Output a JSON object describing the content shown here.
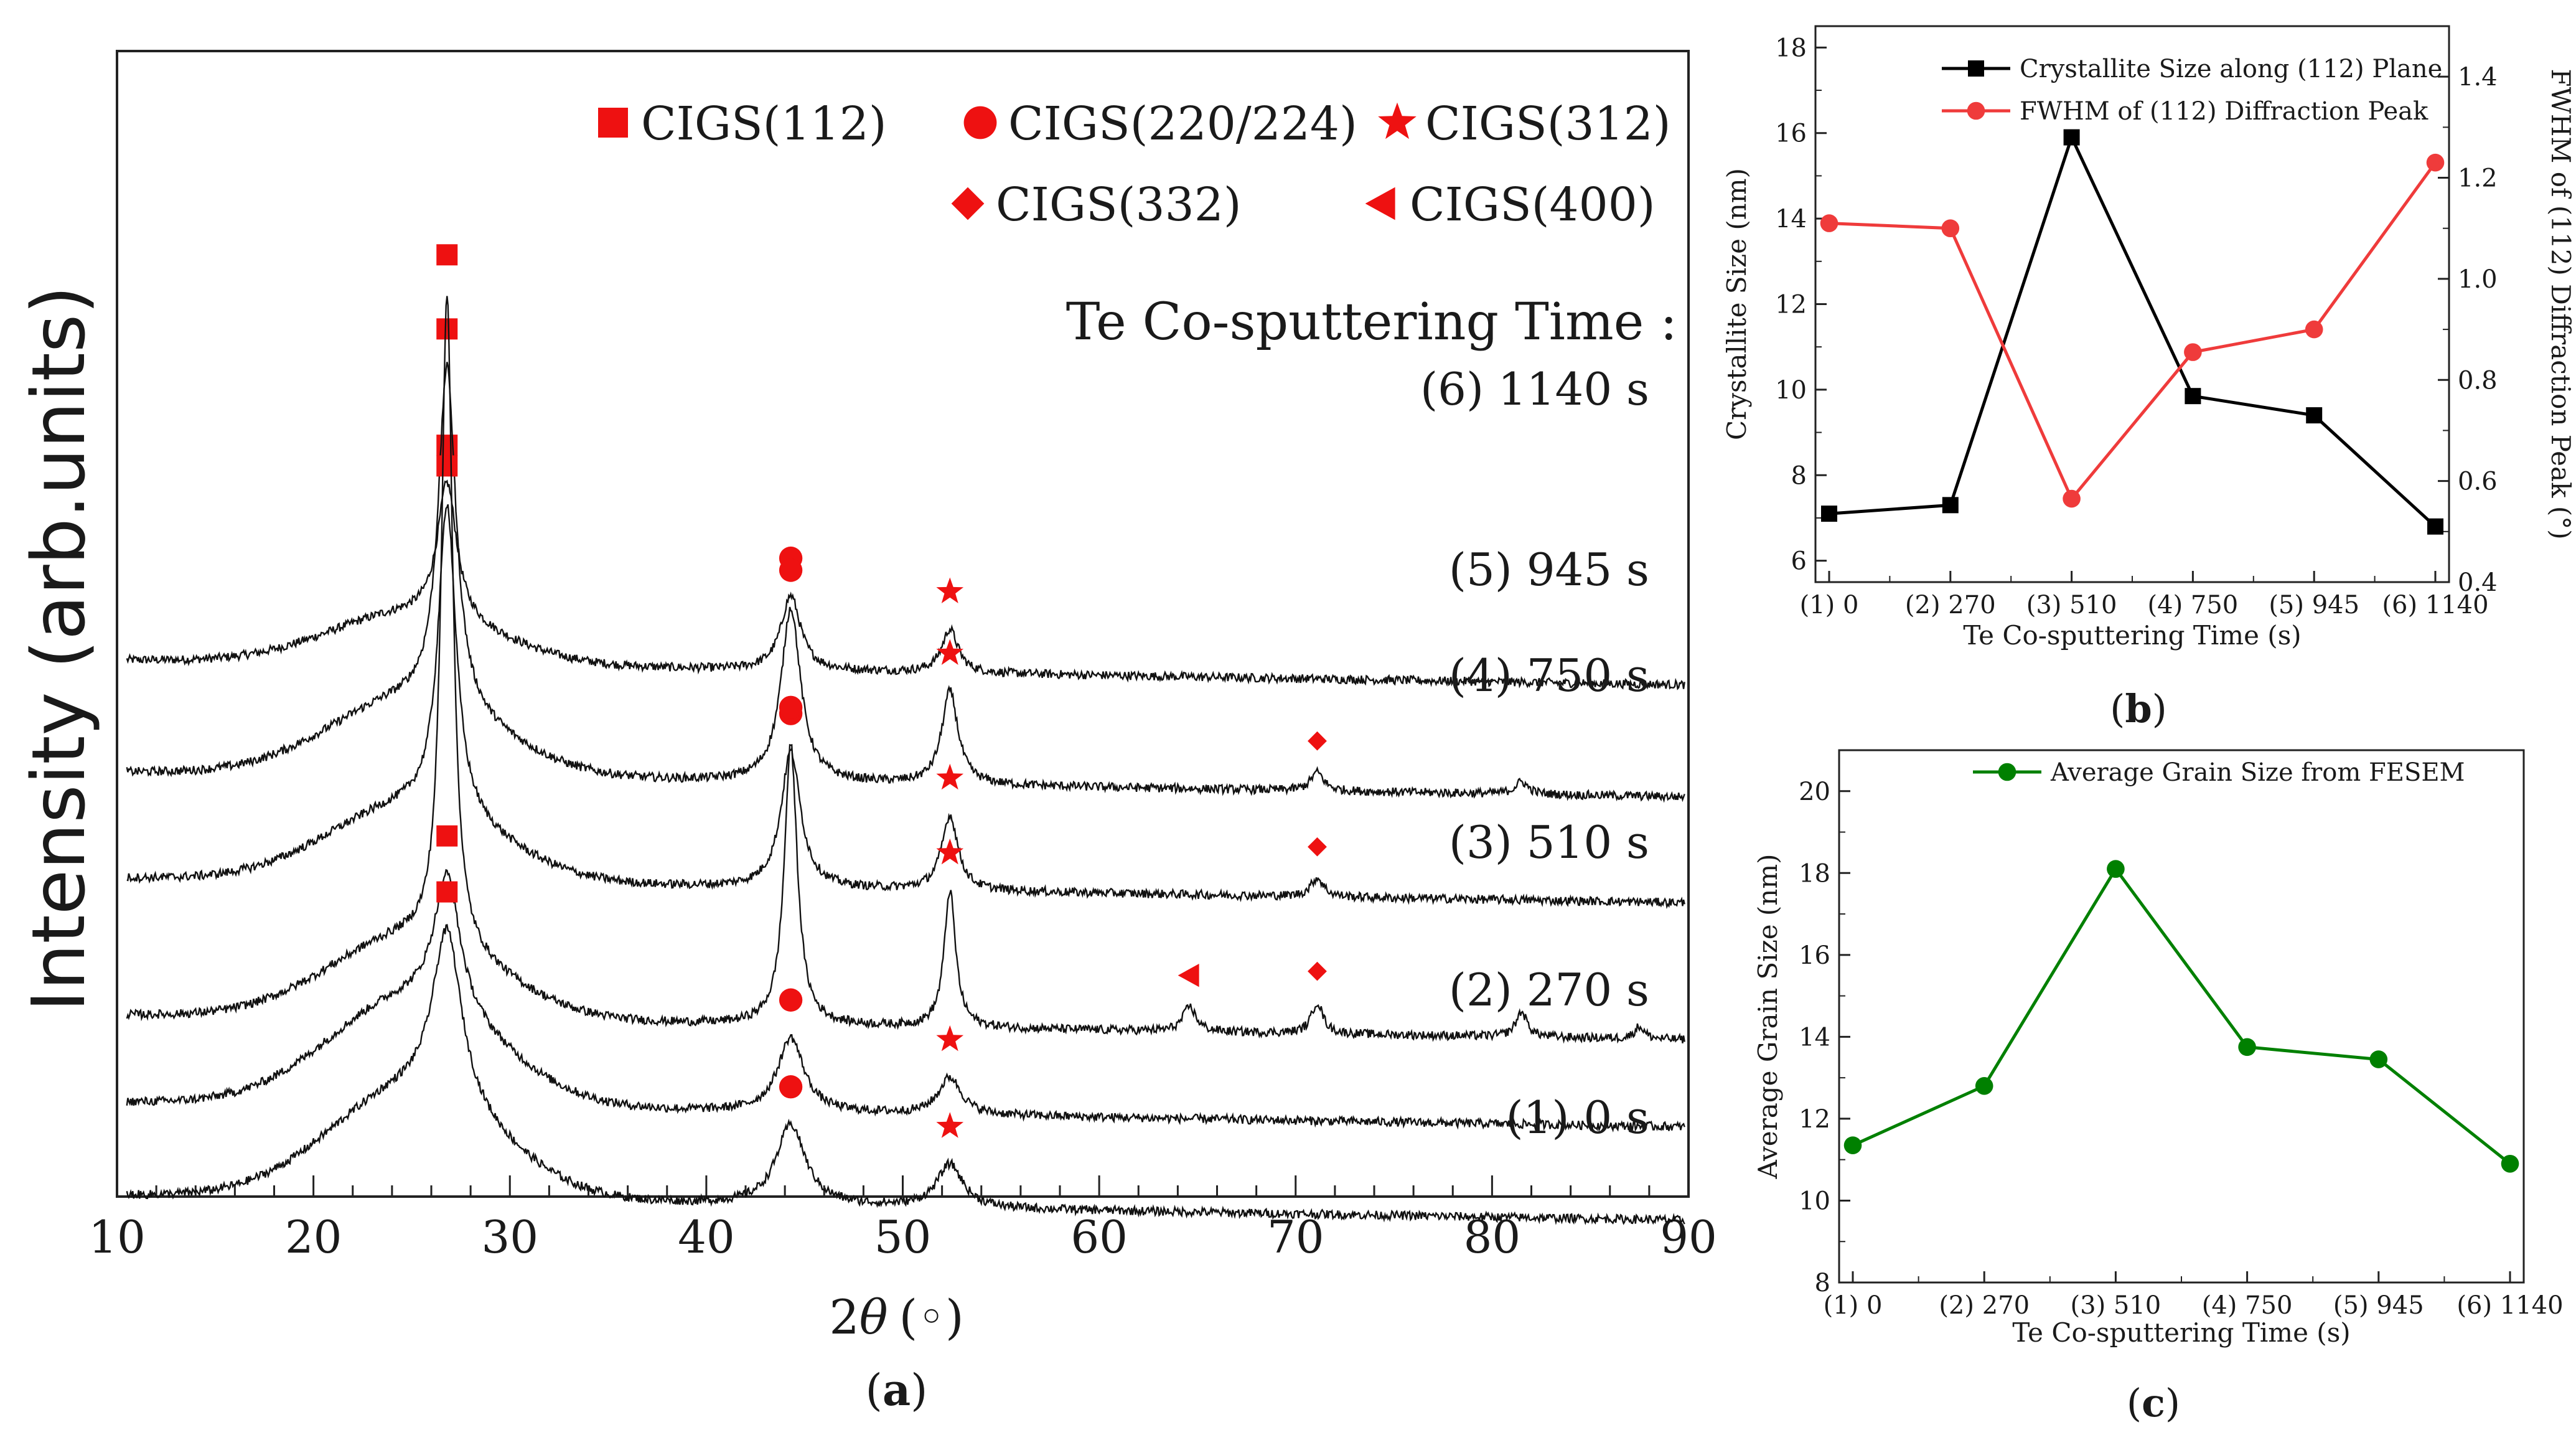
{
  "chart_data": [
    {
      "id": "a",
      "type": "line",
      "panel_label": "a",
      "xlabel": "2θ (◦)",
      "xlabel_main": "2",
      "xlabel_sym": "θ",
      "xlabel_unit": "(◦)",
      "ylabel": "Intensity (arb.units)",
      "xlim": [
        10,
        90
      ],
      "xticks": [
        "10",
        "20",
        "30",
        "40",
        "50",
        "60",
        "70",
        "80",
        "90"
      ],
      "xtick_values": [
        10,
        20,
        30,
        40,
        50,
        60,
        70,
        80,
        90
      ],
      "legend": [
        {
          "label": "CIGS(112)",
          "marker": "square"
        },
        {
          "label": "CIGS(220/224)",
          "marker": "circle"
        },
        {
          "label": "CIGS(312)",
          "marker": "star"
        },
        {
          "label": "CIGS(332)",
          "marker": "diamond"
        },
        {
          "label": "CIGS(400)",
          "marker": "triangle-left"
        }
      ],
      "series_title": "Te Co-sputtering Time :",
      "series": [
        {
          "name": "(6) 1140 s",
          "baseline": 0.8,
          "peaks": [
            [
              26.8,
              0.22,
              0.6
            ],
            [
              44.3,
              0.12,
              0.6
            ],
            [
              52.4,
              0.07,
              0.5
            ]
          ],
          "broad": 0.08,
          "markers": [
            {
              "type": "square",
              "x": 26.8
            },
            {
              "type": "circle",
              "x": 44.3
            },
            {
              "type": "star",
              "x": 52.4
            }
          ]
        },
        {
          "name": "(5) 945 s",
          "baseline": 0.62,
          "peaks": [
            [
              26.8,
              0.55,
              0.55
            ],
            [
              44.3,
              0.28,
              0.6
            ],
            [
              52.4,
              0.15,
              0.5
            ],
            [
              71.1,
              0.03,
              0.4
            ],
            [
              81.5,
              0.02,
              0.4
            ]
          ],
          "broad": 0.12,
          "markers": [
            {
              "type": "square",
              "x": 26.8
            },
            {
              "type": "circle",
              "x": 44.3
            },
            {
              "type": "star",
              "x": 52.4
            },
            {
              "type": "diamond",
              "x": 71.1
            }
          ]
        },
        {
          "name": "(4) 750 s",
          "baseline": 0.45,
          "peaks": [
            [
              26.8,
              0.5,
              0.55
            ],
            [
              44.3,
              0.22,
              0.6
            ],
            [
              52.4,
              0.12,
              0.5
            ],
            [
              71.1,
              0.03,
              0.4
            ]
          ],
          "broad": 0.12,
          "markers": [
            {
              "type": "square",
              "x": 26.8
            },
            {
              "type": "circle",
              "x": 44.3
            },
            {
              "type": "star",
              "x": 52.4
            },
            {
              "type": "diamond",
              "x": 71.1
            }
          ]
        },
        {
          "name": "(3) 510 s",
          "baseline": 0.23,
          "peaks": [
            [
              26.8,
              1.05,
              0.35
            ],
            [
              44.3,
              0.45,
              0.4
            ],
            [
              52.4,
              0.22,
              0.35
            ],
            [
              64.6,
              0.04,
              0.4
            ],
            [
              71.1,
              0.05,
              0.35
            ],
            [
              81.5,
              0.04,
              0.35
            ],
            [
              87.5,
              0.02,
              0.3
            ]
          ],
          "broad": 0.13,
          "markers": [
            {
              "type": "square",
              "x": 26.8
            },
            {
              "type": "circle",
              "x": 44.3
            },
            {
              "type": "star",
              "x": 52.4
            },
            {
              "type": "triangle-left",
              "x": 64.6
            },
            {
              "type": "diamond",
              "x": 71.1
            }
          ]
        },
        {
          "name": "(2) 270 s",
          "baseline": 0.09,
          "peaks": [
            [
              26.8,
              0.22,
              0.8
            ],
            [
              44.3,
              0.12,
              0.8
            ],
            [
              52.4,
              0.06,
              0.7
            ]
          ],
          "broad": 0.17,
          "markers": [
            {
              "type": "square",
              "x": 26.8
            },
            {
              "type": "circle",
              "x": 44.3
            },
            {
              "type": "star",
              "x": 52.4
            }
          ]
        },
        {
          "name": "(1) 0 s",
          "baseline": -0.06,
          "peaks": [
            [
              26.8,
              0.28,
              0.9
            ],
            [
              44.3,
              0.13,
              0.9
            ],
            [
              52.4,
              0.07,
              0.8
            ]
          ],
          "broad": 0.17,
          "markers": [
            {
              "type": "square",
              "x": 26.8
            },
            {
              "type": "circle",
              "x": 44.3
            },
            {
              "type": "star",
              "x": 52.4
            }
          ]
        }
      ]
    },
    {
      "id": "b",
      "type": "line",
      "panel_label": "b",
      "xlabel": "Te Co-sputtering Time (s)",
      "ylabel": "Crystallite Size (nm)",
      "y2label": "FWHM of (112) Diffraction Peak (°)",
      "categories": [
        "(1) 0",
        "(2) 270",
        "(3) 510",
        "(4) 750",
        "(5) 945",
        "(6) 1140"
      ],
      "ylim": [
        5.5,
        18.5
      ],
      "yticks": [
        6,
        8,
        10,
        12,
        14,
        16,
        18
      ],
      "y2lim": [
        0.4,
        1.5
      ],
      "y2ticks": [
        "0.4",
        "0.6",
        "0.8",
        "1.0",
        "1.2",
        "1.4"
      ],
      "series": [
        {
          "name": "Crystallite Size along (112) Plane",
          "color": "#000000",
          "marker": "square",
          "axis": "left",
          "values": [
            7.1,
            7.3,
            15.9,
            9.85,
            9.4,
            6.8
          ]
        },
        {
          "name": "FWHM of (112) Diffraction Peak",
          "color": "#ef3b3b",
          "marker": "circle",
          "axis": "right",
          "values": [
            1.11,
            1.1,
            0.565,
            0.855,
            0.9,
            1.23
          ]
        }
      ]
    },
    {
      "id": "c",
      "type": "line",
      "panel_label": "c",
      "xlabel": "Te Co-sputtering Time (s)",
      "ylabel": "Average Grain Size (nm)",
      "categories": [
        "(1) 0",
        "(2) 270",
        "(3) 510",
        "(4) 750",
        "(5) 945",
        "(6) 1140"
      ],
      "ylim": [
        8,
        21
      ],
      "yticks": [
        8,
        10,
        12,
        14,
        16,
        18,
        20
      ],
      "series": [
        {
          "name": "Average Grain Size from FESEM",
          "color": "#008000",
          "marker": "circle",
          "values": [
            11.35,
            12.8,
            18.1,
            13.75,
            13.45,
            10.9
          ]
        }
      ]
    }
  ]
}
